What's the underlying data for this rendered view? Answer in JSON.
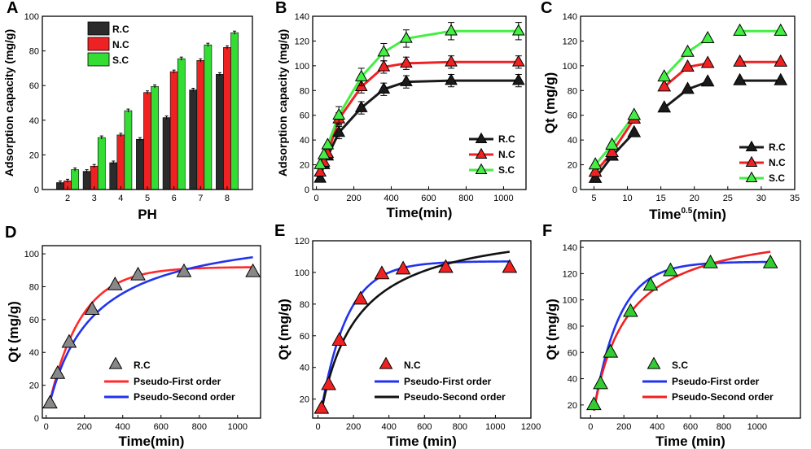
{
  "chart_data": [
    {
      "type": "bar",
      "panel": "A",
      "xlabel": "PH",
      "ylabel": "Adsorption capacity (mg/g)",
      "ylim": [
        0,
        100
      ],
      "xticks": [
        "2",
        "3",
        "4",
        "5",
        "6",
        "7",
        "8"
      ],
      "yticks": [
        0,
        20,
        40,
        60,
        80,
        100
      ],
      "categories": [
        "2",
        "3",
        "4",
        "5",
        "6",
        "7",
        "8"
      ],
      "series": [
        {
          "name": "R.C",
          "color": "#2b2b2b",
          "values": [
            4,
            10.5,
            15.5,
            29,
            41.5,
            57.5,
            66.5
          ]
        },
        {
          "name": "N.C",
          "color": "#ee2222",
          "values": [
            5,
            13.5,
            31.5,
            56,
            68,
            74.5,
            82
          ]
        },
        {
          "name": "S.C",
          "color": "#33dd33",
          "values": [
            11.5,
            30,
            45.5,
            59.5,
            75.5,
            83.5,
            90.5
          ]
        }
      ],
      "legend_position": "top-left"
    },
    {
      "type": "line",
      "panel": "B",
      "xlabel": "Time(min)",
      "ylabel": "Adsorption capacity (mg/g)",
      "xlim": [
        -20,
        1120
      ],
      "ylim": [
        0,
        140
      ],
      "xticks": [
        0,
        200,
        400,
        600,
        800,
        1000
      ],
      "yticks": [
        0,
        20,
        40,
        60,
        80,
        100,
        120,
        140
      ],
      "series": [
        {
          "name": "R.C",
          "color": "#1a1a1a",
          "x": [
            20,
            40,
            60,
            120,
            240,
            360,
            480,
            720,
            1080
          ],
          "y": [
            9,
            20,
            27,
            46,
            66,
            81,
            87,
            88,
            88
          ],
          "err": 5
        },
        {
          "name": "N.C",
          "color": "#ee2222",
          "x": [
            20,
            40,
            60,
            120,
            240,
            360,
            480,
            720,
            1080
          ],
          "y": [
            14,
            22,
            29,
            57,
            83,
            99,
            102,
            103,
            103
          ],
          "err": 5
        },
        {
          "name": "S.C",
          "color": "#44ee44",
          "x": [
            20,
            40,
            60,
            120,
            240,
            360,
            480,
            720,
            1080
          ],
          "y": [
            20,
            28,
            36,
            60,
            91,
            111,
            122,
            128,
            128
          ],
          "err": 7
        }
      ],
      "legend_position": "bottom-right"
    },
    {
      "type": "line",
      "panel": "C",
      "xlabel": "Time",
      "xlabel_sup": "0.5",
      "xlabel_suffix": "(min)",
      "ylabel": "Qt (mg/g)",
      "xlim": [
        3,
        35
      ],
      "ylim": [
        0,
        140
      ],
      "xticks": [
        5,
        10,
        15,
        20,
        25,
        30,
        35
      ],
      "yticks": [
        0,
        20,
        40,
        60,
        80,
        100,
        120,
        140
      ],
      "series": [
        {
          "name": "R.C",
          "color": "#1a1a1a",
          "segments": [
            [
              [
                5.2,
                9
              ],
              [
                7.7,
                27
              ],
              [
                11,
                46
              ]
            ],
            [
              [
                15.5,
                66
              ],
              [
                19,
                81
              ],
              [
                22,
                87
              ]
            ],
            [
              [
                26.8,
                88
              ],
              [
                32.9,
                88
              ]
            ]
          ]
        },
        {
          "name": "N.C",
          "color": "#ee2222",
          "segments": [
            [
              [
                5.2,
                14
              ],
              [
                7.7,
                30
              ],
              [
                11,
                57
              ]
            ],
            [
              [
                15.5,
                83
              ],
              [
                19,
                99
              ],
              [
                22,
                102
              ]
            ],
            [
              [
                26.8,
                103
              ],
              [
                32.9,
                103
              ]
            ]
          ]
        },
        {
          "name": "S.C",
          "color": "#44ee44",
          "segments": [
            [
              [
                5.2,
                20
              ],
              [
                7.7,
                36
              ],
              [
                11,
                60
              ]
            ],
            [
              [
                15.5,
                91
              ],
              [
                19,
                111
              ],
              [
                22,
                122
              ]
            ],
            [
              [
                26.8,
                128
              ],
              [
                32.9,
                128
              ]
            ]
          ]
        }
      ],
      "legend_position": "bottom-right"
    },
    {
      "type": "scatter",
      "panel": "D",
      "xlabel": "Time(min)",
      "ylabel": "Qt (mg/g)",
      "xlim": [
        -20,
        1120
      ],
      "ylim": [
        0,
        105
      ],
      "xticks": [
        0,
        200,
        400,
        600,
        800,
        1000
      ],
      "yticks": [
        0,
        20,
        40,
        60,
        80,
        100
      ],
      "points": {
        "name": "R.C",
        "color": "#888888",
        "x": [
          20,
          60,
          120,
          240,
          360,
          480,
          720,
          1080
        ],
        "y": [
          9,
          27,
          46,
          66,
          81,
          87,
          89,
          89
        ]
      },
      "fits": [
        {
          "name": "Pseudo-First order",
          "color": "#ff2a2a",
          "model": "pfo",
          "qe": 92,
          "k": 0.006
        },
        {
          "name": "Pseudo-Second order",
          "color": "#2233ee",
          "model": "pso",
          "qe": 118,
          "k": 3.83e-05
        }
      ],
      "legend_position": "bottom-right"
    },
    {
      "type": "scatter",
      "panel": "E",
      "xlabel": "Time (min)",
      "ylabel": "Qt (mg/g)",
      "xlim": [
        -30,
        1200
      ],
      "ylim": [
        8,
        120
      ],
      "xticks": [
        0,
        200,
        400,
        600,
        800,
        1000,
        1200
      ],
      "yticks": [
        20,
        40,
        60,
        80,
        100,
        120
      ],
      "points": {
        "name": "N.C",
        "color": "#ee2222",
        "x": [
          20,
          60,
          120,
          240,
          360,
          480,
          720,
          1080
        ],
        "y": [
          14,
          29,
          57,
          83,
          99,
          102,
          103,
          103
        ]
      },
      "fits": [
        {
          "name": "Pseudo-First order",
          "color": "#2233ee",
          "model": "pfo",
          "qe": 107,
          "k": 0.0068
        },
        {
          "name": "Pseudo-Second order",
          "color": "#111111",
          "model": "pso",
          "qe": 133,
          "k": 3.95e-05
        }
      ],
      "legend_position": "bottom-right"
    },
    {
      "type": "scatter",
      "panel": "F",
      "xlabel": "Time (min)",
      "ylabel": "Qt (mg/g)",
      "xlim": [
        -60,
        1260
      ],
      "ylim": [
        10,
        145
      ],
      "xticks": [
        0,
        200,
        400,
        600,
        800,
        1000
      ],
      "yticks": [
        20,
        40,
        60,
        80,
        100,
        120,
        140
      ],
      "points": {
        "name": "S.C",
        "color": "#33cc33",
        "x": [
          20,
          60,
          120,
          240,
          360,
          480,
          720,
          1080
        ],
        "y": [
          20,
          36,
          60,
          91,
          111,
          122,
          128,
          128
        ]
      },
      "fits": [
        {
          "name": "Pseudo-First order",
          "color": "#2233ee",
          "model": "pfo",
          "qe": 129,
          "k": 0.0065
        },
        {
          "name": "Pseudo-Second order",
          "color": "#ee2222",
          "model": "pso",
          "qe": 160,
          "k": 3.39e-05
        }
      ],
      "legend_position": "bottom-right"
    }
  ]
}
